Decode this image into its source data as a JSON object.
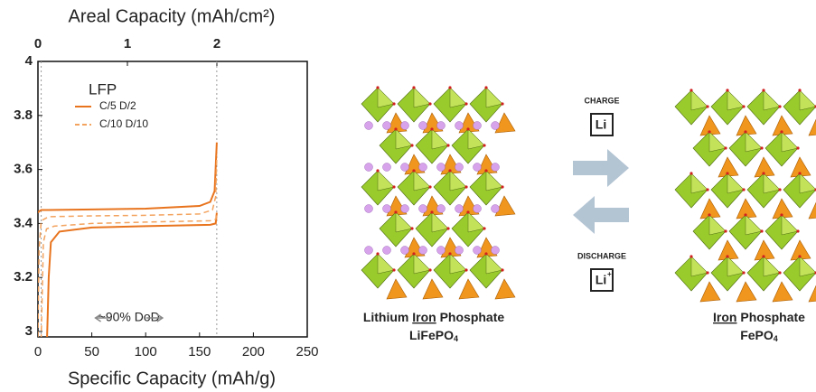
{
  "chart_data": {
    "type": "line",
    "title": "Areal Capacity (mAh/cm²)",
    "x_label": "Specific Capacity (mAh/g)",
    "legend_title": "LFP",
    "annotation": "~90% DoD",
    "xlim": [
      0,
      250
    ],
    "xticks": [
      0,
      50,
      100,
      150,
      200,
      250
    ],
    "x2lim": [
      0,
      3.01
    ],
    "x2ticks": [
      0,
      1,
      2
    ],
    "ylim": [
      2.98,
      4
    ],
    "yticks": [
      3,
      3.2,
      3.4,
      3.6,
      3.8,
      4
    ],
    "vlines": [
      3,
      166
    ],
    "legend": "upper left",
    "series": [
      {
        "name": "C/5 D/2",
        "color": "#e8741e",
        "dash": false,
        "x": [
          0,
          1,
          3,
          10,
          50,
          100,
          150,
          160,
          164,
          166,
          null,
          166,
          165,
          160,
          100,
          50,
          20,
          12,
          10,
          9,
          8.5
        ],
        "values": [
          3.44,
          3.445,
          3.45,
          3.45,
          3.452,
          3.455,
          3.465,
          3.48,
          3.52,
          3.7,
          null,
          3.44,
          3.4,
          3.395,
          3.39,
          3.385,
          3.37,
          3.33,
          3.2,
          3.05,
          2.98
        ]
      },
      {
        "name": "C/10 D/10",
        "color": "#f3a35e",
        "dash": true,
        "x": [
          0,
          1,
          3,
          10,
          50,
          100,
          150,
          162,
          165,
          166,
          null,
          166,
          165,
          160,
          100,
          50,
          15,
          8,
          5,
          4,
          3
        ],
        "values": [
          2.98,
          3.3,
          3.41,
          3.425,
          3.428,
          3.43,
          3.435,
          3.45,
          3.5,
          3.65,
          null,
          3.43,
          3.415,
          3.41,
          3.405,
          3.4,
          3.39,
          3.38,
          3.33,
          3.15,
          2.98
        ]
      }
    ]
  },
  "diagram": {
    "charge": "CHARGE",
    "discharge": "DISCHARGE",
    "ion": "Li",
    "ion_charge": "+",
    "left_name": [
      "Lithium ",
      "Iron",
      " Phosphate"
    ],
    "left_formula": [
      "LiFePO",
      "4"
    ],
    "right_name": [
      "Iron",
      " Phosphate"
    ],
    "right_formula": [
      "FePO",
      "4"
    ]
  }
}
